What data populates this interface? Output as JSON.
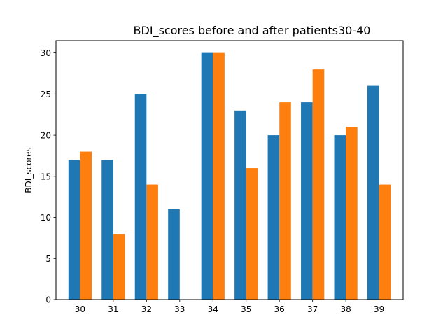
{
  "chart_data": {
    "type": "bar",
    "title": "BDI_scores before and after patients30-40",
    "xlabel": "",
    "ylabel": "BDI_scores",
    "categories": [
      "30",
      "31",
      "32",
      "33",
      "34",
      "35",
      "36",
      "37",
      "38",
      "39"
    ],
    "series": [
      {
        "values": [
          17,
          17,
          25,
          11,
          30,
          23,
          20,
          24,
          20,
          26
        ],
        "color": "#1f77b4"
      },
      {
        "values": [
          18,
          8,
          14,
          0,
          30,
          16,
          24,
          28,
          21,
          14
        ],
        "color": "#ff7f0e"
      }
    ],
    "ylim": [
      0,
      31.5
    ],
    "yticks": [
      0,
      5,
      10,
      15,
      20,
      25,
      30
    ],
    "grid": false,
    "legend": "none"
  }
}
